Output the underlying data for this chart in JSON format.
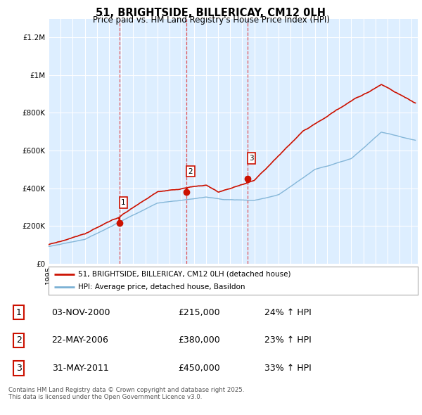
{
  "title": "51, BRIGHTSIDE, BILLERICAY, CM12 0LH",
  "subtitle": "Price paid vs. HM Land Registry's House Price Index (HPI)",
  "background_color": "#ddeeff",
  "legend_line1": "51, BRIGHTSIDE, BILLERICAY, CM12 0LH (detached house)",
  "legend_line2": "HPI: Average price, detached house, Basildon",
  "transactions": [
    {
      "num": 1,
      "date": "03-NOV-2000",
      "price": 215000,
      "hpi_pct": "24% ↑ HPI",
      "year": 2000.84
    },
    {
      "num": 2,
      "date": "22-MAY-2006",
      "price": 380000,
      "hpi_pct": "23% ↑ HPI",
      "year": 2006.39
    },
    {
      "num": 3,
      "date": "31-MAY-2011",
      "price": 450000,
      "hpi_pct": "33% ↑ HPI",
      "year": 2011.42
    }
  ],
  "footer": "Contains HM Land Registry data © Crown copyright and database right 2025.\nThis data is licensed under the Open Government Licence v3.0.",
  "ylim": [
    0,
    1300000
  ],
  "xlim_start": 1995,
  "xlim_end": 2025.5,
  "red_color": "#cc1100",
  "blue_color": "#7ab0d4"
}
